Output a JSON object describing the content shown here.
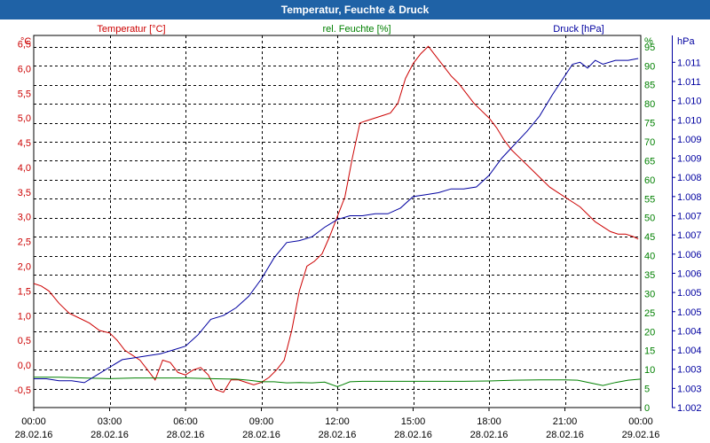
{
  "window": {
    "title": "Temperatur, Feuchte & Druck"
  },
  "colors": {
    "temp": "#cc0000",
    "hum": "#008000",
    "press": "#0000a0",
    "grid": "#000000",
    "titlebar": "#1f62a6"
  },
  "chart_data": {
    "type": "line",
    "title": "Temperatur, Feuchte & Druck",
    "x_ticks": [
      {
        "h": 0,
        "time": "00:00",
        "date": "28.02.16"
      },
      {
        "h": 3,
        "time": "03:00",
        "date": "28.02.16"
      },
      {
        "h": 6,
        "time": "06:00",
        "date": "28.02.16"
      },
      {
        "h": 9,
        "time": "09:00",
        "date": "28.02.16"
      },
      {
        "h": 12,
        "time": "12:00",
        "date": "28.02.16"
      },
      {
        "h": 15,
        "time": "15:00",
        "date": "28.02.16"
      },
      {
        "h": 18,
        "time": "18:00",
        "date": "28.02.16"
      },
      {
        "h": 21,
        "time": "21:00",
        "date": "28.02.16"
      },
      {
        "h": 24,
        "time": "00:00",
        "date": "29.02.16"
      }
    ],
    "axes": {
      "temp": {
        "label": "Temperatur [°C]",
        "unit": "°C",
        "range": [
          -0.86,
          6.67
        ],
        "ticks": [
          "-0,5",
          "0,0",
          "0,5",
          "1,0",
          "1,5",
          "2,0",
          "2,5",
          "3,0",
          "3,5",
          "4,0",
          "4,5",
          "5,0",
          "5,5",
          "6,0",
          "6,5"
        ],
        "tick_values": [
          -0.5,
          0,
          0.5,
          1,
          1.5,
          2,
          2.5,
          3,
          3.5,
          4,
          4.5,
          5,
          5.5,
          6,
          6.5
        ]
      },
      "hum": {
        "label": "rel. Feuchte [%]",
        "unit": "%",
        "range": [
          0,
          98
        ],
        "ticks": [
          "0",
          "5",
          "10",
          "15",
          "20",
          "25",
          "30",
          "35",
          "40",
          "45",
          "50",
          "55",
          "60",
          "65",
          "70",
          "75",
          "80",
          "85",
          "90",
          "95"
        ],
        "tick_values": [
          0,
          5,
          10,
          15,
          20,
          25,
          30,
          35,
          40,
          45,
          50,
          55,
          60,
          65,
          70,
          75,
          80,
          85,
          90,
          95
        ]
      },
      "press": {
        "label": "Druck [hPa]",
        "unit": "hPa",
        "range": [
          1002.0,
          1011.7
        ],
        "ticks": [
          "1.002",
          "1.003",
          "1.003",
          "1.004",
          "1.004",
          "1.005",
          "1.005",
          "1.006",
          "1.006",
          "1.007",
          "1.007",
          "1.008",
          "1.008",
          "1.009",
          "1.009",
          "1.010",
          "1.010",
          "1.011",
          "1.011"
        ],
        "tick_values": [
          1002.0,
          1002.5,
          1003.0,
          1003.5,
          1004.0,
          1004.5,
          1005.0,
          1005.5,
          1006.0,
          1006.5,
          1007.0,
          1007.5,
          1008.0,
          1008.5,
          1009.0,
          1009.5,
          1010.0,
          1010.5,
          1011.0
        ]
      }
    },
    "series": [
      {
        "name": "Temperatur",
        "axis": "temp",
        "color": "#cc0000",
        "x": [
          0,
          0.3,
          0.6,
          1.0,
          1.4,
          1.8,
          2.2,
          2.6,
          3.0,
          3.3,
          3.6,
          3.9,
          4.2,
          4.5,
          4.8,
          5.1,
          5.4,
          5.7,
          6.0,
          6.3,
          6.6,
          6.9,
          7.2,
          7.5,
          7.8,
          8.1,
          8.4,
          8.7,
          9.0,
          9.3,
          9.6,
          9.9,
          10.2,
          10.5,
          10.8,
          11.1,
          11.4,
          11.7,
          12.0,
          12.3,
          12.6,
          12.9,
          13.2,
          13.5,
          13.8,
          14.1,
          14.4,
          14.7,
          15.0,
          15.3,
          15.6,
          15.9,
          16.2,
          16.5,
          16.8,
          17.1,
          17.4,
          17.7,
          18.0,
          18.3,
          18.6,
          18.9,
          19.2,
          19.5,
          19.8,
          20.1,
          20.4,
          20.7,
          21.0,
          21.3,
          21.6,
          21.9,
          22.2,
          22.5,
          22.8,
          23.1,
          23.4,
          23.7,
          23.9
        ],
        "values": [
          1.65,
          1.6,
          1.5,
          1.25,
          1.05,
          0.95,
          0.85,
          0.7,
          0.65,
          0.5,
          0.3,
          0.2,
          0.1,
          -0.1,
          -0.3,
          0.1,
          0.05,
          -0.15,
          -0.2,
          -0.1,
          -0.05,
          -0.2,
          -0.5,
          -0.55,
          -0.3,
          -0.3,
          -0.35,
          -0.4,
          -0.35,
          -0.25,
          -0.1,
          0.1,
          0.7,
          1.5,
          2.0,
          2.1,
          2.25,
          2.6,
          3.0,
          3.4,
          4.2,
          4.9,
          4.95,
          5.0,
          5.05,
          5.1,
          5.3,
          5.8,
          6.1,
          6.3,
          6.45,
          6.25,
          6.05,
          5.85,
          5.7,
          5.5,
          5.3,
          5.15,
          5.0,
          4.8,
          4.55,
          4.35,
          4.2,
          4.05,
          3.9,
          3.75,
          3.6,
          3.5,
          3.4,
          3.3,
          3.2,
          3.05,
          2.9,
          2.8,
          2.7,
          2.65,
          2.65,
          2.6,
          2.55
        ]
      },
      {
        "name": "rel. Feuchte",
        "axis": "hum",
        "color": "#008000",
        "x": [
          0,
          1,
          2,
          3,
          4,
          5,
          6,
          7,
          8,
          8.5,
          9.0,
          9.5,
          10,
          10.5,
          11,
          11.5,
          12.0,
          12.2,
          12.5,
          13,
          14,
          15,
          16,
          17,
          18,
          19,
          20,
          21,
          21.5,
          22,
          22.5,
          23,
          23.5,
          24
        ],
        "values": [
          8.0,
          8.0,
          7.8,
          7.6,
          7.8,
          7.8,
          7.8,
          7.6,
          7.5,
          7.2,
          6.8,
          6.8,
          6.5,
          6.6,
          6.5,
          6.7,
          5.5,
          6.0,
          6.8,
          6.9,
          6.9,
          6.9,
          6.9,
          6.9,
          7.0,
          7.2,
          7.3,
          7.3,
          7.2,
          6.5,
          5.8,
          6.6,
          7.2,
          7.5
        ]
      },
      {
        "name": "Druck",
        "axis": "press",
        "color": "#0000a0",
        "x": [
          0,
          0.5,
          1.0,
          1.5,
          2.0,
          2.5,
          3.0,
          3.5,
          4.0,
          4.5,
          5.0,
          5.5,
          6.0,
          6.5,
          7.0,
          7.5,
          8.0,
          8.5,
          9.0,
          9.5,
          10.0,
          10.5,
          11.0,
          11.5,
          12.0,
          12.5,
          13.0,
          13.5,
          14.0,
          14.5,
          15.0,
          15.5,
          16.0,
          16.5,
          17.0,
          17.5,
          18.0,
          18.5,
          19.0,
          19.5,
          20.0,
          20.5,
          21.0,
          21.3,
          21.6,
          21.9,
          22.2,
          22.5,
          23.0,
          23.5,
          23.9
        ],
        "values": [
          1002.75,
          1002.75,
          1002.7,
          1002.7,
          1002.65,
          1002.85,
          1003.05,
          1003.25,
          1003.3,
          1003.35,
          1003.4,
          1003.5,
          1003.6,
          1003.9,
          1004.3,
          1004.4,
          1004.6,
          1004.9,
          1005.35,
          1005.9,
          1006.3,
          1006.35,
          1006.45,
          1006.7,
          1006.9,
          1007.0,
          1007.0,
          1007.05,
          1007.05,
          1007.2,
          1007.5,
          1007.55,
          1007.6,
          1007.7,
          1007.7,
          1007.75,
          1008.05,
          1008.5,
          1008.85,
          1009.2,
          1009.6,
          1010.15,
          1010.65,
          1010.95,
          1011.0,
          1010.85,
          1011.05,
          1010.95,
          1011.05,
          1011.05,
          1011.1
        ]
      }
    ]
  }
}
